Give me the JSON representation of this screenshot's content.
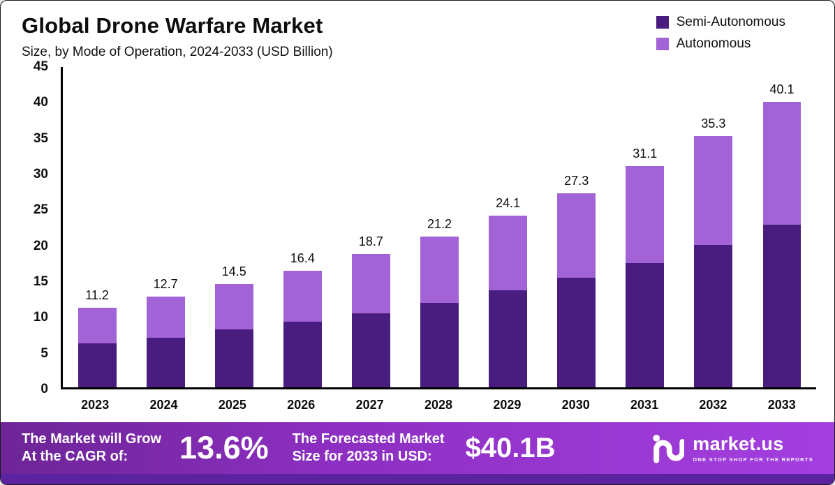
{
  "header": {
    "title": "Global Drone Warfare Market",
    "subtitle": "Size, by Mode of Operation, 2024-2033 (USD Billion)"
  },
  "legend": [
    {
      "label": "Semi-Autonomous",
      "color": "#481d7f"
    },
    {
      "label": "Autonomous",
      "color": "#a263d6"
    }
  ],
  "chart_data": {
    "type": "bar",
    "stacked": true,
    "title": "Global Drone Warfare Market",
    "subtitle": "Size, by Mode of Operation, 2024-2033 (USD Billion)",
    "unit": "USD Billion",
    "categories": [
      "2023",
      "2024",
      "2025",
      "2026",
      "2027",
      "2028",
      "2029",
      "2030",
      "2031",
      "2032",
      "2033"
    ],
    "series": [
      {
        "name": "Semi-Autonomous",
        "color": "#481d7f",
        "values": [
          6.2,
          7.0,
          8.1,
          9.2,
          10.4,
          11.9,
          13.6,
          15.4,
          17.5,
          20.0,
          22.8
        ]
      },
      {
        "name": "Autonomous",
        "color": "#a263d6",
        "values": [
          5.0,
          5.7,
          6.4,
          7.2,
          8.3,
          9.3,
          10.5,
          11.9,
          13.6,
          15.3,
          17.3
        ]
      }
    ],
    "totals": [
      11.2,
      12.7,
      14.5,
      16.4,
      18.7,
      21.2,
      24.1,
      27.3,
      31.1,
      35.3,
      40.1
    ],
    "total_labels": [
      "11.2",
      "12.7",
      "14.5",
      "16.4",
      "18.7",
      "21.2",
      "24.1",
      "27.3",
      "31.1",
      "35.3",
      "40.1"
    ],
    "xlabel": "",
    "ylabel": "",
    "ylim": [
      0,
      45
    ],
    "yticks": [
      0,
      5,
      10,
      15,
      20,
      25,
      30,
      35,
      40,
      45
    ],
    "grid": false,
    "legend_position": "top-right"
  },
  "footer": {
    "cagr_label_line1": "The Market will Grow",
    "cagr_label_line2": "At the CAGR of:",
    "cagr_value": "13.6%",
    "forecast_label_line1": "The Forecasted Market",
    "forecast_label_line2": "Size for 2033 in USD:",
    "forecast_value": "$40.1B",
    "brand_name": "market.us",
    "brand_tagline": "ONE STOP SHOP FOR THE REPORTS"
  },
  "colors": {
    "semi_autonomous": "#481d7f",
    "autonomous": "#a263d6",
    "footer_gradient_start": "#6d2596",
    "footer_gradient_end": "#a43fe0",
    "bottom_strip": "#5c23a0"
  }
}
